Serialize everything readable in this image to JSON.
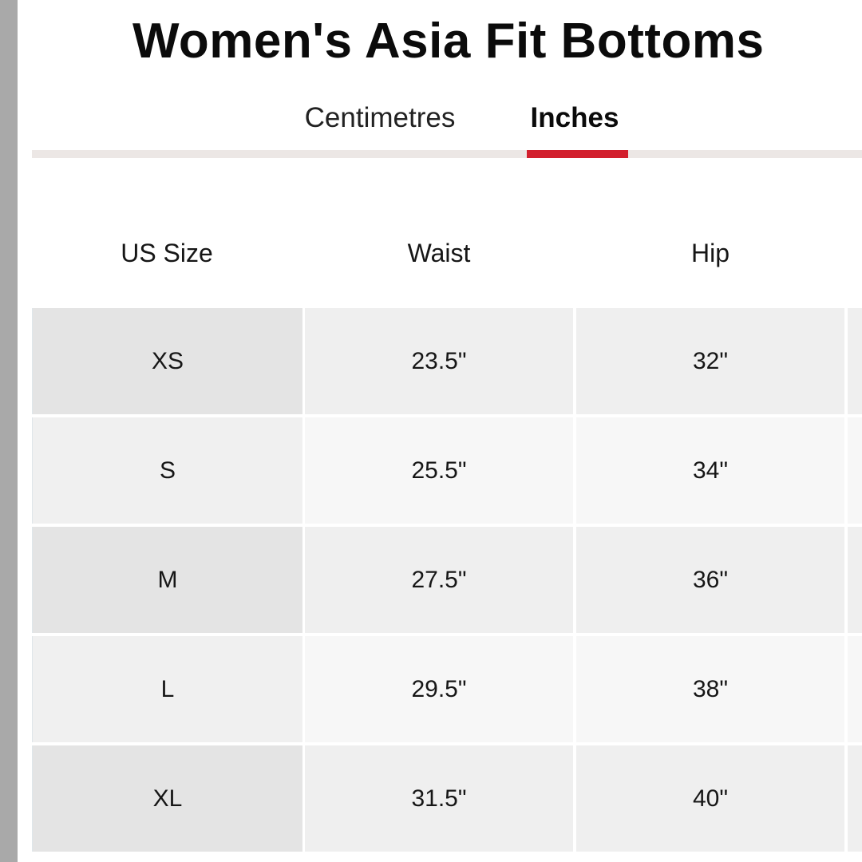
{
  "title": "Women's Asia Fit Bottoms",
  "tabs": [
    {
      "label": "Centimetres",
      "active": false
    },
    {
      "label": "Inches",
      "active": true
    }
  ],
  "colors": {
    "active_indicator": "#d21f2d",
    "tab_rail": "#ece7e5",
    "left_strip": "#a9a9a9"
  },
  "table": {
    "headers": [
      "US Size",
      "Waist",
      "Hip"
    ],
    "rows": [
      {
        "size": "XS",
        "waist": "23.5\"",
        "hip": "32\""
      },
      {
        "size": "S",
        "waist": "25.5\"",
        "hip": "34\""
      },
      {
        "size": "M",
        "waist": "27.5\"",
        "hip": "36\""
      },
      {
        "size": "L",
        "waist": "29.5\"",
        "hip": "38\""
      },
      {
        "size": "XL",
        "waist": "31.5\"",
        "hip": "40\""
      }
    ]
  }
}
